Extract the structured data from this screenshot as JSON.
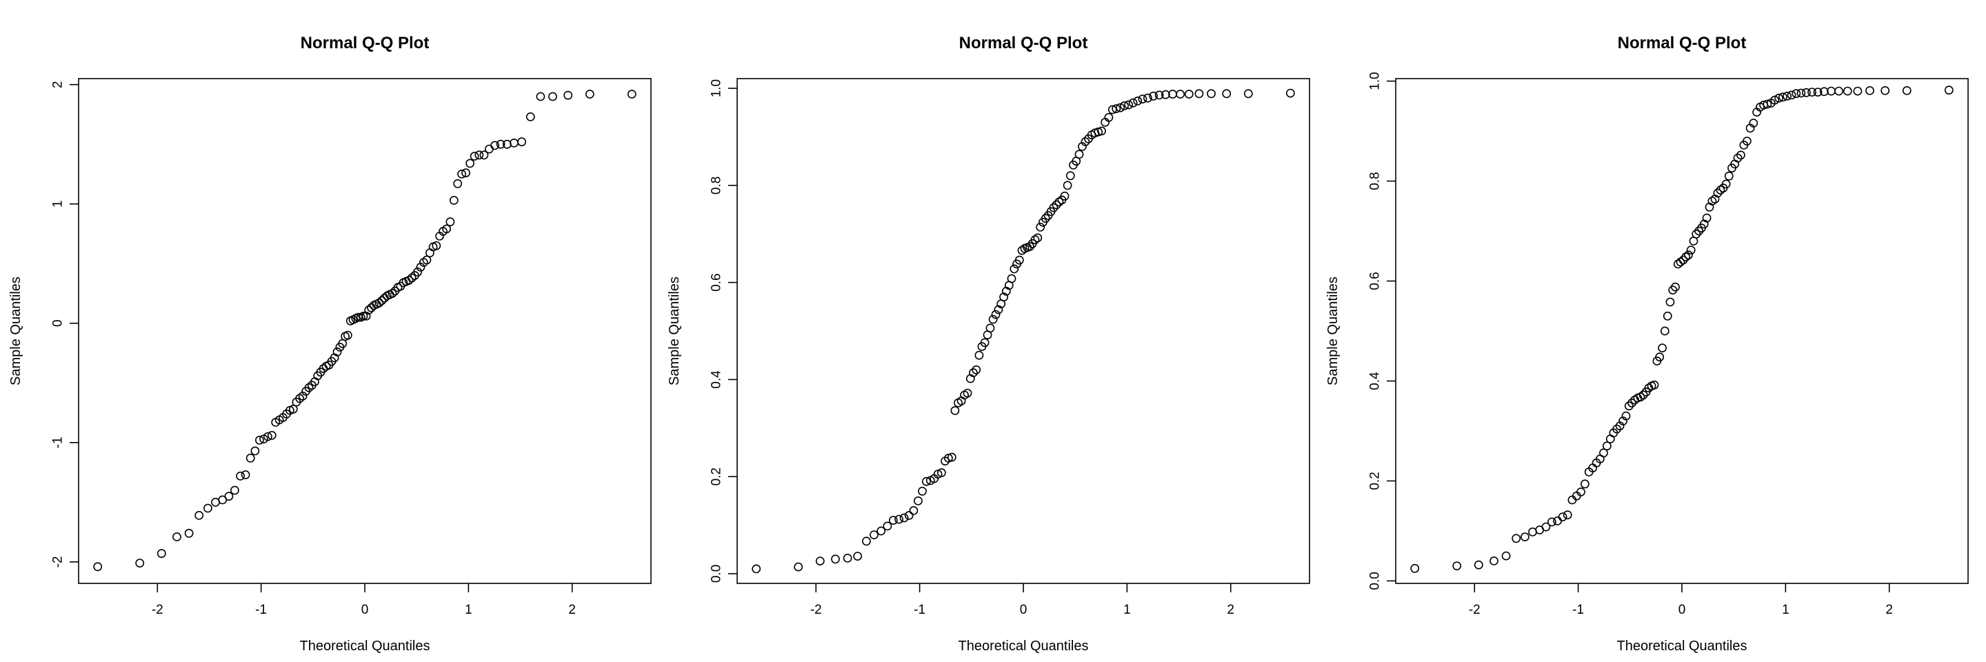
{
  "chart_data": [
    {
      "type": "scatter",
      "title": "Normal Q-Q Plot",
      "xlabel": "Theoretical Quantiles",
      "ylabel": "Sample Quantiles",
      "xlim": [
        -2.76,
        2.76
      ],
      "ylim": [
        -2.18,
        2.05
      ],
      "xticks": [
        -2,
        -1,
        0,
        1,
        2
      ],
      "yticks": [
        -2,
        -1,
        0,
        1,
        2
      ],
      "ytick_labels": [
        "-2",
        "-1",
        "0",
        "1",
        "2"
      ],
      "grid": false,
      "theoretical": [
        -2.576,
        -2.17,
        -1.96,
        -1.812,
        -1.695,
        -1.598,
        -1.514,
        -1.44,
        -1.372,
        -1.311,
        -1.254,
        -1.2,
        -1.15,
        -1.103,
        -1.058,
        -1.015,
        -0.974,
        -0.935,
        -0.896,
        -0.86,
        -0.824,
        -0.789,
        -0.755,
        -0.722,
        -0.69,
        -0.659,
        -0.628,
        -0.598,
        -0.568,
        -0.539,
        -0.51,
        -0.482,
        -0.454,
        -0.426,
        -0.399,
        -0.372,
        -0.345,
        -0.319,
        -0.292,
        -0.266,
        -0.24,
        -0.215,
        -0.189,
        -0.164,
        -0.138,
        -0.113,
        -0.088,
        -0.063,
        -0.038,
        -0.013,
        0.013,
        0.038,
        0.063,
        0.088,
        0.113,
        0.138,
        0.164,
        0.189,
        0.215,
        0.24,
        0.266,
        0.292,
        0.319,
        0.345,
        0.372,
        0.399,
        0.426,
        0.454,
        0.482,
        0.51,
        0.539,
        0.568,
        0.598,
        0.628,
        0.659,
        0.69,
        0.722,
        0.755,
        0.789,
        0.824,
        0.86,
        0.896,
        0.935,
        0.974,
        1.015,
        1.058,
        1.103,
        1.15,
        1.2,
        1.254,
        1.311,
        1.372,
        1.44,
        1.514,
        1.598,
        1.695,
        1.812,
        1.96,
        2.17,
        2.576
      ],
      "sample": [
        -2.04,
        -2.01,
        -1.93,
        -1.79,
        -1.76,
        -1.61,
        -1.55,
        -1.5,
        -1.48,
        -1.45,
        -1.4,
        -1.28,
        -1.27,
        -1.13,
        -1.07,
        -0.98,
        -0.97,
        -0.95,
        -0.94,
        -0.83,
        -0.81,
        -0.79,
        -0.76,
        -0.73,
        -0.72,
        -0.66,
        -0.63,
        -0.61,
        -0.57,
        -0.54,
        -0.52,
        -0.49,
        -0.44,
        -0.41,
        -0.38,
        -0.36,
        -0.35,
        -0.32,
        -0.29,
        -0.24,
        -0.2,
        -0.17,
        -0.11,
        -0.1,
        0.02,
        0.03,
        0.04,
        0.05,
        0.05,
        0.06,
        0.06,
        0.11,
        0.13,
        0.15,
        0.16,
        0.17,
        0.19,
        0.21,
        0.23,
        0.24,
        0.25,
        0.27,
        0.3,
        0.31,
        0.34,
        0.35,
        0.36,
        0.38,
        0.4,
        0.43,
        0.47,
        0.51,
        0.53,
        0.59,
        0.64,
        0.65,
        0.73,
        0.77,
        0.79,
        0.85,
        1.03,
        1.17,
        1.25,
        1.26,
        1.34,
        1.4,
        1.41,
        1.41,
        1.46,
        1.49,
        1.5,
        1.5,
        1.51,
        1.52,
        1.73,
        1.9,
        1.9,
        1.91,
        1.92,
        1.92
      ]
    },
    {
      "type": "scatter",
      "title": "Normal Q-Q Plot",
      "xlabel": "Theoretical Quantiles",
      "ylabel": "Sample Quantiles",
      "xlim": [
        -2.76,
        2.76
      ],
      "ylim": [
        -0.02,
        1.02
      ],
      "xticks": [
        -2,
        -1,
        0,
        1,
        2
      ],
      "yticks": [
        0.0,
        0.2,
        0.4,
        0.6,
        0.8,
        1.0
      ],
      "ytick_labels": [
        "0.0",
        "0.2",
        "0.4",
        "0.6",
        "0.8",
        "1.0"
      ],
      "grid": false,
      "theoretical": [
        -2.576,
        -2.17,
        -1.96,
        -1.812,
        -1.695,
        -1.598,
        -1.514,
        -1.44,
        -1.372,
        -1.311,
        -1.254,
        -1.2,
        -1.15,
        -1.103,
        -1.058,
        -1.015,
        -0.974,
        -0.935,
        -0.896,
        -0.86,
        -0.824,
        -0.789,
        -0.755,
        -0.722,
        -0.69,
        -0.659,
        -0.628,
        -0.598,
        -0.568,
        -0.539,
        -0.51,
        -0.482,
        -0.454,
        -0.426,
        -0.399,
        -0.372,
        -0.345,
        -0.319,
        -0.292,
        -0.266,
        -0.24,
        -0.215,
        -0.189,
        -0.164,
        -0.138,
        -0.113,
        -0.088,
        -0.063,
        -0.038,
        -0.013,
        0.013,
        0.038,
        0.063,
        0.088,
        0.113,
        0.138,
        0.164,
        0.189,
        0.215,
        0.24,
        0.266,
        0.292,
        0.319,
        0.345,
        0.372,
        0.399,
        0.426,
        0.454,
        0.482,
        0.51,
        0.539,
        0.568,
        0.598,
        0.628,
        0.659,
        0.69,
        0.722,
        0.755,
        0.789,
        0.824,
        0.86,
        0.896,
        0.935,
        0.974,
        1.015,
        1.058,
        1.103,
        1.15,
        1.2,
        1.254,
        1.311,
        1.372,
        1.44,
        1.514,
        1.598,
        1.695,
        1.812,
        1.96,
        2.17,
        2.576
      ],
      "sample": [
        0.01,
        0.014,
        0.026,
        0.03,
        0.032,
        0.036,
        0.067,
        0.08,
        0.088,
        0.098,
        0.11,
        0.112,
        0.115,
        0.12,
        0.13,
        0.15,
        0.17,
        0.19,
        0.192,
        0.196,
        0.205,
        0.208,
        0.232,
        0.238,
        0.24,
        0.336,
        0.352,
        0.356,
        0.368,
        0.372,
        0.402,
        0.414,
        0.42,
        0.45,
        0.468,
        0.476,
        0.492,
        0.506,
        0.524,
        0.534,
        0.544,
        0.556,
        0.57,
        0.582,
        0.594,
        0.608,
        0.628,
        0.638,
        0.646,
        0.666,
        0.67,
        0.672,
        0.674,
        0.68,
        0.688,
        0.692,
        0.714,
        0.724,
        0.732,
        0.738,
        0.746,
        0.754,
        0.76,
        0.766,
        0.77,
        0.778,
        0.8,
        0.82,
        0.842,
        0.85,
        0.864,
        0.88,
        0.89,
        0.896,
        0.904,
        0.908,
        0.91,
        0.912,
        0.93,
        0.94,
        0.956,
        0.958,
        0.96,
        0.964,
        0.966,
        0.97,
        0.974,
        0.978,
        0.98,
        0.984,
        0.986,
        0.987,
        0.988,
        0.988,
        0.988,
        0.989,
        0.989,
        0.989,
        0.989,
        0.99
      ]
    },
    {
      "type": "scatter",
      "title": "Normal Q-Q Plot",
      "xlabel": "Theoretical Quantiles",
      "ylabel": "Sample Quantiles",
      "xlim": [
        -2.76,
        2.76
      ],
      "ylim": [
        -0.005,
        1.005
      ],
      "xticks": [
        -2,
        -1,
        0,
        1,
        2
      ],
      "yticks": [
        0.0,
        0.2,
        0.4,
        0.6,
        0.8,
        1.0
      ],
      "ytick_labels": [
        "0.0",
        "0.2",
        "0.4",
        "0.6",
        "0.8",
        "1.0"
      ],
      "grid": false,
      "theoretical": [
        -2.576,
        -2.17,
        -1.96,
        -1.812,
        -1.695,
        -1.598,
        -1.514,
        -1.44,
        -1.372,
        -1.311,
        -1.254,
        -1.2,
        -1.15,
        -1.103,
        -1.058,
        -1.015,
        -0.974,
        -0.935,
        -0.896,
        -0.86,
        -0.824,
        -0.789,
        -0.755,
        -0.722,
        -0.69,
        -0.659,
        -0.628,
        -0.598,
        -0.568,
        -0.539,
        -0.51,
        -0.482,
        -0.454,
        -0.426,
        -0.399,
        -0.372,
        -0.345,
        -0.319,
        -0.292,
        -0.266,
        -0.24,
        -0.215,
        -0.189,
        -0.164,
        -0.138,
        -0.113,
        -0.088,
        -0.063,
        -0.038,
        -0.013,
        0.013,
        0.038,
        0.063,
        0.088,
        0.113,
        0.138,
        0.164,
        0.189,
        0.215,
        0.24,
        0.266,
        0.292,
        0.319,
        0.345,
        0.372,
        0.399,
        0.426,
        0.454,
        0.482,
        0.51,
        0.539,
        0.568,
        0.598,
        0.628,
        0.659,
        0.69,
        0.722,
        0.755,
        0.789,
        0.824,
        0.86,
        0.896,
        0.935,
        0.974,
        1.015,
        1.058,
        1.103,
        1.15,
        1.2,
        1.254,
        1.311,
        1.372,
        1.44,
        1.514,
        1.598,
        1.695,
        1.812,
        1.96,
        2.17,
        2.576
      ],
      "sample": [
        0.025,
        0.03,
        0.032,
        0.04,
        0.05,
        0.085,
        0.088,
        0.098,
        0.102,
        0.108,
        0.118,
        0.12,
        0.128,
        0.132,
        0.162,
        0.17,
        0.178,
        0.194,
        0.218,
        0.226,
        0.236,
        0.244,
        0.256,
        0.27,
        0.284,
        0.296,
        0.304,
        0.31,
        0.32,
        0.33,
        0.35,
        0.356,
        0.362,
        0.366,
        0.368,
        0.372,
        0.378,
        0.386,
        0.39,
        0.392,
        0.44,
        0.448,
        0.466,
        0.5,
        0.53,
        0.558,
        0.582,
        0.588,
        0.634,
        0.638,
        0.642,
        0.648,
        0.652,
        0.662,
        0.68,
        0.694,
        0.7,
        0.706,
        0.714,
        0.726,
        0.748,
        0.76,
        0.764,
        0.776,
        0.782,
        0.786,
        0.794,
        0.81,
        0.826,
        0.834,
        0.846,
        0.852,
        0.872,
        0.88,
        0.906,
        0.916,
        0.938,
        0.948,
        0.952,
        0.954,
        0.956,
        0.962,
        0.966,
        0.968,
        0.97,
        0.972,
        0.975,
        0.976,
        0.977,
        0.978,
        0.978,
        0.979,
        0.98,
        0.98,
        0.98,
        0.98,
        0.981,
        0.981,
        0.981,
        0.982
      ]
    }
  ]
}
